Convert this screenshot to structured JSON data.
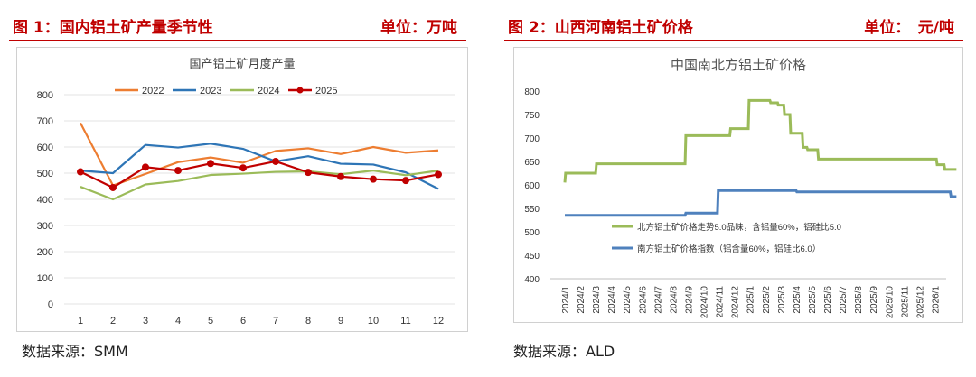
{
  "panels": [
    {
      "header_title": "图 1：国内铝土矿产量季节性",
      "header_unit": "单位：万吨",
      "source": "数据来源：SMM"
    },
    {
      "header_title": "图 2：山西河南铝土矿价格",
      "header_unit": "单位：　元/吨",
      "source": "数据来源：ALD"
    }
  ],
  "chart_data": [
    {
      "type": "line",
      "title": "国产铝土矿月度产量",
      "xlabel": "",
      "ylabel": "",
      "categories": [
        "1",
        "2",
        "3",
        "4",
        "5",
        "6",
        "7",
        "8",
        "9",
        "10",
        "11",
        "12"
      ],
      "ylim": [
        0,
        800
      ],
      "yticks": [
        "0",
        "100",
        "200",
        "300",
        "400",
        "500",
        "600",
        "700",
        "800"
      ],
      "grid": true,
      "legend": "top",
      "series": [
        {
          "name": "2022",
          "color": "#ed7d31",
          "marker": false,
          "values": [
            692,
            453,
            497,
            542,
            560,
            540,
            585,
            595,
            573,
            600,
            578,
            587
          ]
        },
        {
          "name": "2023",
          "color": "#2e75b6",
          "marker": false,
          "values": [
            510,
            500,
            608,
            598,
            613,
            593,
            545,
            565,
            536,
            533,
            503,
            440
          ]
        },
        {
          "name": "2024",
          "color": "#9bbb59",
          "marker": false,
          "values": [
            448,
            400,
            457,
            470,
            493,
            498,
            505,
            507,
            496,
            510,
            492,
            510
          ]
        },
        {
          "name": "2025",
          "color": "#c00000",
          "marker": true,
          "values": [
            505,
            445,
            523,
            510,
            537,
            520,
            545,
            503,
            487,
            477,
            472,
            495
          ]
        }
      ]
    },
    {
      "type": "line",
      "title": "中国南北方铝土矿价格",
      "xlabel": "",
      "ylabel": "",
      "categories": [
        "2024/1",
        "2024/2",
        "2024/3",
        "2024/4",
        "2024/5",
        "2024/6",
        "2024/7",
        "2024/8",
        "2024/9",
        "2024/10",
        "2024/11",
        "2024/12",
        "2025/1",
        "2025/2",
        "2025/3",
        "2025/4",
        "2025/5",
        "2025/6",
        "2025/7",
        "2025/8",
        "2025/9",
        "2025/10",
        "2025/11",
        "2025/12",
        "2026/1"
      ],
      "ylim": [
        400,
        800
      ],
      "yticks": [
        "400",
        "450",
        "500",
        "550",
        "600",
        "650",
        "700",
        "750",
        "800"
      ],
      "grid": false,
      "legend": "inside-bottom",
      "series": [
        {
          "name": "北方铝土矿价格走势5.0品味，含铝量60%，铝硅比5.0",
          "color": "#9bbb59",
          "points": [
            [
              0,
              605
            ],
            [
              0.05,
              625
            ],
            [
              2.0,
              625
            ],
            [
              2.05,
              645
            ],
            [
              7.8,
              645
            ],
            [
              7.85,
              705
            ],
            [
              10.7,
              705
            ],
            [
              10.75,
              720
            ],
            [
              11.9,
              720
            ],
            [
              11.95,
              780
            ],
            [
              13.3,
              780
            ],
            [
              13.35,
              775
            ],
            [
              13.8,
              775
            ],
            [
              13.85,
              770
            ],
            [
              14.2,
              770
            ],
            [
              14.25,
              750
            ],
            [
              14.6,
              750
            ],
            [
              14.65,
              710
            ],
            [
              15.4,
              710
            ],
            [
              15.45,
              680
            ],
            [
              15.7,
              680
            ],
            [
              15.75,
              675
            ],
            [
              16.4,
              675
            ],
            [
              16.45,
              655
            ],
            [
              24.1,
              655
            ],
            [
              24.15,
              643
            ],
            [
              24.6,
              643
            ],
            [
              24.65,
              633
            ],
            [
              25.4,
              633
            ]
          ]
        },
        {
          "name": "南方铝土矿价格指数（铝含量60%，铝硅比6.0）",
          "color": "#4f81bd",
          "points": [
            [
              0,
              535
            ],
            [
              7.8,
              535
            ],
            [
              7.85,
              540
            ],
            [
              9.9,
              540
            ],
            [
              9.95,
              588
            ],
            [
              15.0,
              588
            ],
            [
              15.05,
              585
            ],
            [
              25.0,
              585
            ],
            [
              25.05,
              575
            ],
            [
              25.4,
              575
            ]
          ]
        }
      ]
    }
  ]
}
